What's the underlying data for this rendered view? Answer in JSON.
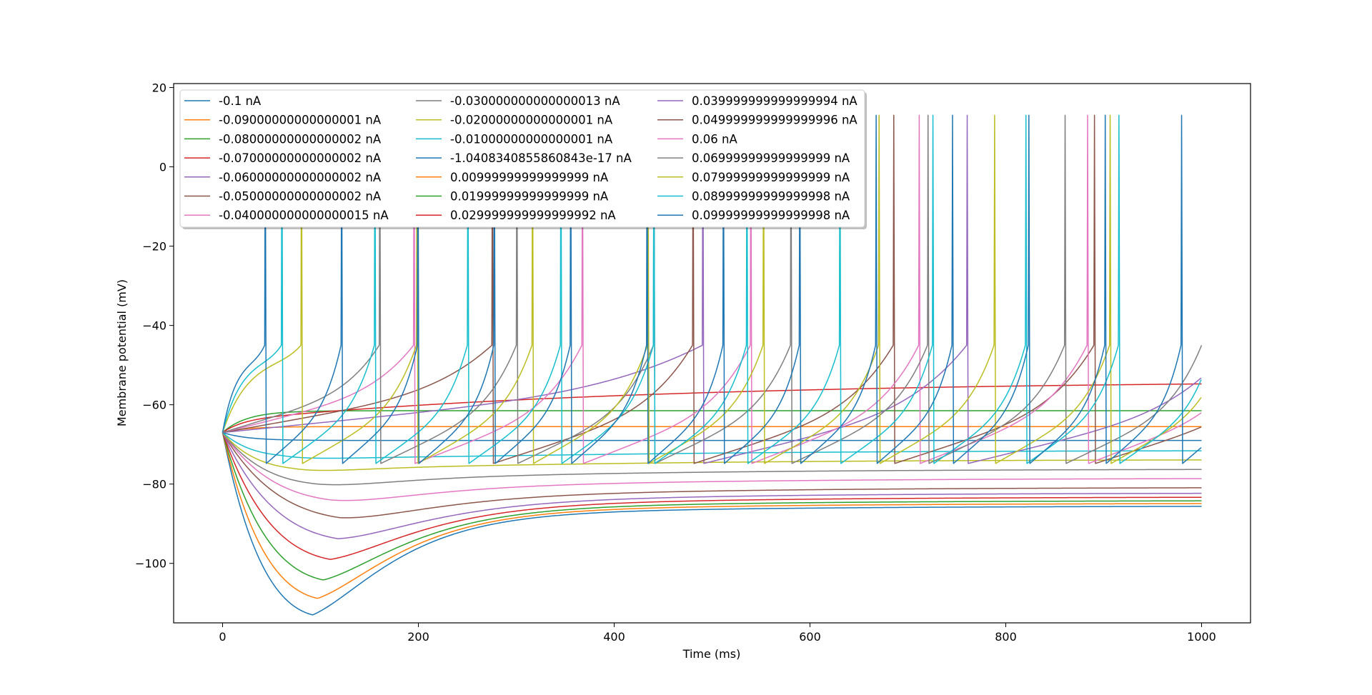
{
  "chart_data": {
    "type": "line",
    "title": "",
    "xlabel": "Time (ms)",
    "ylabel": "Membrane potential (mV)",
    "xlim": [
      -50,
      1050
    ],
    "ylim": [
      -115,
      21
    ],
    "xticks": [
      0,
      200,
      400,
      600,
      800,
      1000
    ],
    "xtick_labels": [
      "0",
      "200",
      "400",
      "600",
      "800",
      "1000"
    ],
    "yticks": [
      20,
      0,
      -20,
      -40,
      -60,
      -80,
      -100
    ],
    "ytick_labels": [
      "20",
      "0",
      "−20",
      "−40",
      "−60",
      "−80",
      "−100"
    ],
    "grid": false,
    "legend_position": "upper-left",
    "legend_columns": 3,
    "resting_potential": -67,
    "series": [
      {
        "name": "-0.1 nA",
        "color": "#1f77b4",
        "kind": "hyper",
        "min": -109,
        "tmin": 92,
        "final": -85.5
      },
      {
        "name": "-0.09000000000000001 nA",
        "color": "#ff7f0e",
        "kind": "hyper",
        "min": -105,
        "tmin": 97,
        "final": -84.8
      },
      {
        "name": "-0.08000000000000002 nA",
        "color": "#2ca02c",
        "kind": "hyper",
        "min": -100.5,
        "tmin": 103,
        "final": -84.1
      },
      {
        "name": "-0.07000000000000002 nA",
        "color": "#d62728",
        "kind": "hyper",
        "min": -95.5,
        "tmin": 110,
        "final": -83.2
      },
      {
        "name": "-0.06000000000000002 nA",
        "color": "#9467bd",
        "kind": "hyper",
        "min": -90.5,
        "tmin": 118,
        "final": -82.2
      },
      {
        "name": "-0.05000000000000002 nA",
        "color": "#8c564b",
        "kind": "hyper",
        "min": -85.5,
        "tmin": 120,
        "final": -80.8
      },
      {
        "name": "-0.040000000000000015 nA",
        "color": "#e377c2",
        "kind": "hyper",
        "min": -81.5,
        "tmin": 110,
        "final": -78.5
      },
      {
        "name": "-0.030000000000000013 nA",
        "color": "#7f7f7f",
        "kind": "hyper",
        "min": -77.8,
        "tmin": 90,
        "final": -76.2
      },
      {
        "name": "-0.02000000000000001 nA",
        "color": "#bcbd22",
        "kind": "hyper",
        "min": -74.5,
        "tmin": 70,
        "final": -73.8
      },
      {
        "name": "-0.01000000000000001 nA",
        "color": "#17becf",
        "kind": "hyper",
        "min": -71.8,
        "tmin": 60,
        "final": -71.5
      },
      {
        "name": "-1.0408340855860843e-17 nA",
        "color": "#1f77b4",
        "kind": "flat",
        "final": -69.0
      },
      {
        "name": "0.00999999999999999 nA",
        "color": "#ff7f0e",
        "kind": "flat",
        "final": -65.5
      },
      {
        "name": "0.01999999999999999 nA",
        "color": "#2ca02c",
        "kind": "flat",
        "final": -61.5
      },
      {
        "name": "0.029999999999999992 nA",
        "color": "#d62728",
        "kind": "ramp",
        "final": -53.8
      },
      {
        "name": "0.039999999999999994 nA",
        "color": "#9467bd",
        "kind": "spike",
        "first": 490,
        "isi": 270
      },
      {
        "name": "0.049999999999999996 nA",
        "color": "#8c564b",
        "kind": "spike",
        "first": 275,
        "isi": 205
      },
      {
        "name": "0.06 nA",
        "color": "#e377c2",
        "kind": "spike",
        "first": 195,
        "isi": 172
      },
      {
        "name": "0.06999999999999999 nA",
        "color": "#7f7f7f",
        "kind": "spike",
        "first": 160,
        "isi": 140
      },
      {
        "name": "0.07999999999999999 nA",
        "color": "#bcbd22",
        "kind": "spike",
        "first": 80,
        "isi": 118
      },
      {
        "name": "0.08999999999999998 nA",
        "color": "#17becf",
        "kind": "spike",
        "first": 60,
        "isi": 95
      },
      {
        "name": "0.09999999999999998 nA",
        "color": "#1f77b4",
        "kind": "spike",
        "first": 43,
        "isi": 78
      }
    ]
  }
}
